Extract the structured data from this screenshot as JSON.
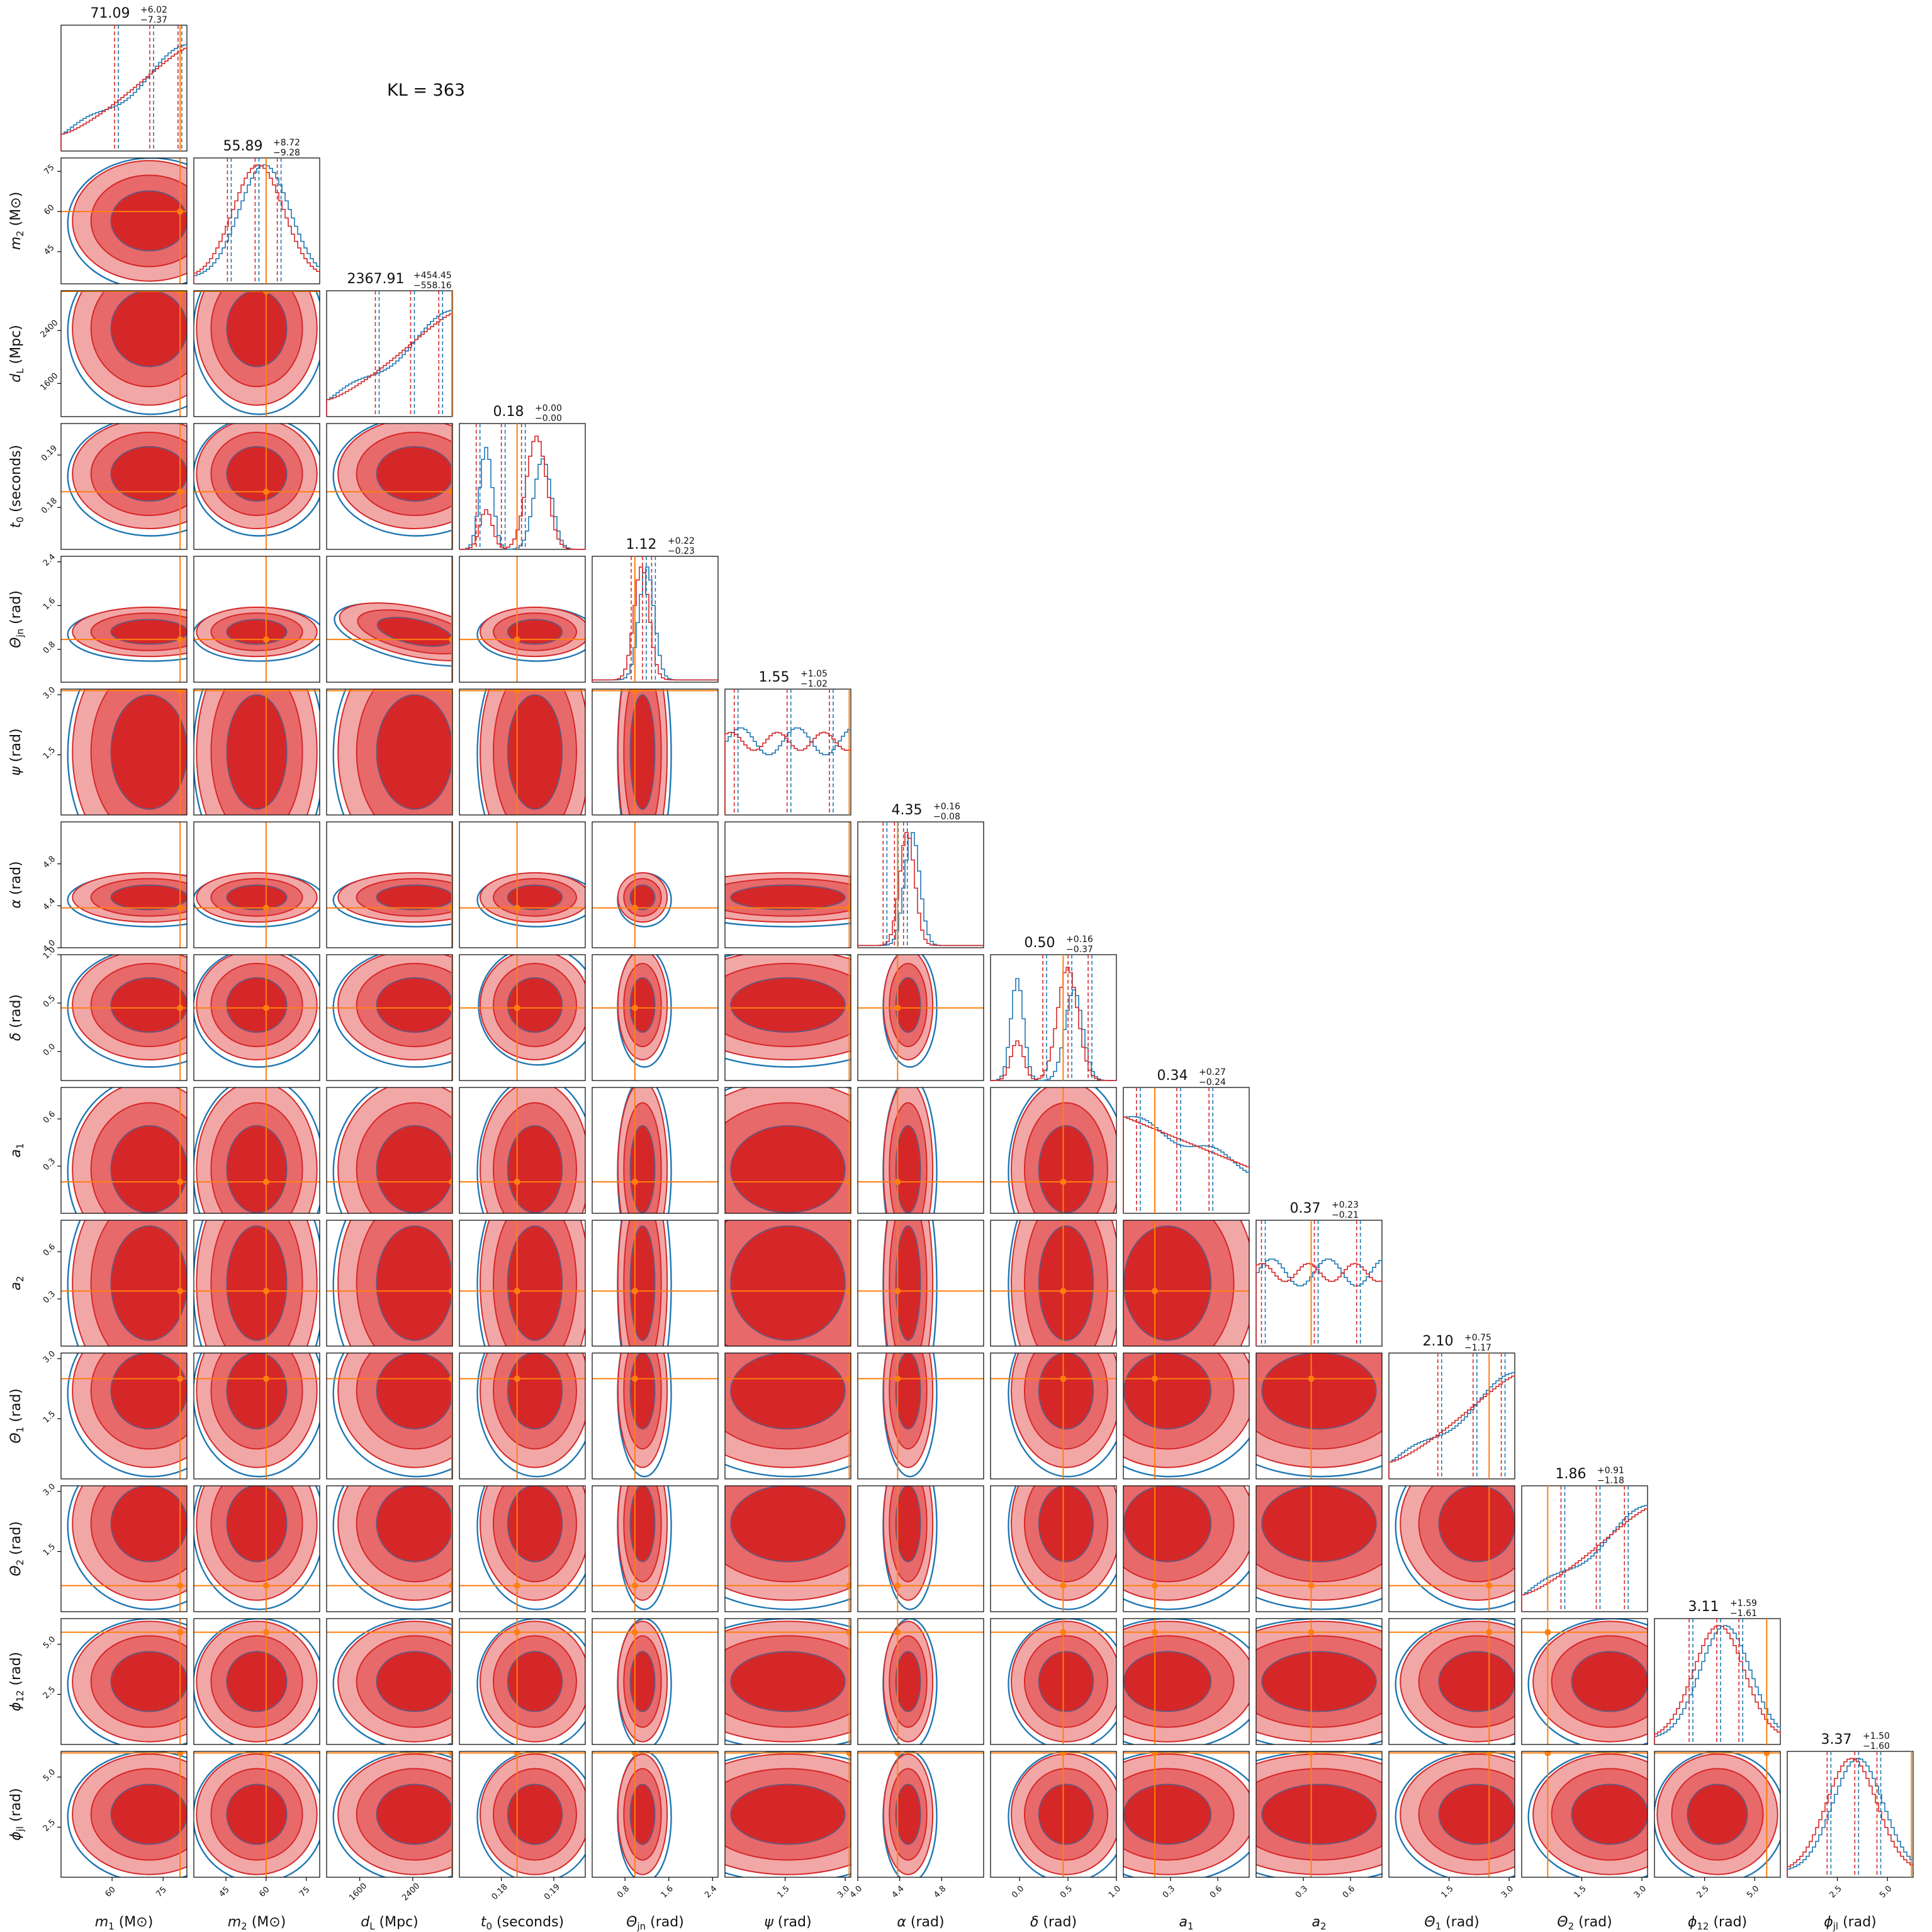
{
  "annotation": {
    "kl_text": "KL = 363"
  },
  "colors": {
    "posterior_a": "#d62728",
    "posterior_b": "#1f77b4",
    "truth": "#ff7f0e"
  },
  "chart_data": {
    "type": "corner",
    "params": [
      {
        "name": "m1",
        "label_main": "m",
        "label_sub": "1",
        "label_unit": "(M⊙)",
        "range": [
          45,
          82
        ],
        "ticks": [
          60,
          75
        ],
        "tick_labels": [
          "60",
          "75"
        ],
        "truth": 80,
        "median": 71.09,
        "plus": "+6.02",
        "minus": "−7.37",
        "median_text": "71.09",
        "shape": "rise"
      },
      {
        "name": "m2",
        "label_main": "m",
        "label_sub": "2",
        "label_unit": "(M⊙)",
        "range": [
          33,
          80
        ],
        "ticks": [
          45,
          60,
          75
        ],
        "tick_labels": [
          "45",
          "60",
          "75"
        ],
        "truth": 60,
        "median": 55.89,
        "plus": "+8.72",
        "minus": "−9.28",
        "median_text": "55.89",
        "shape": "peak"
      },
      {
        "name": "dL",
        "label_main": "d",
        "label_sub": "L",
        "label_unit": "(Mpc)",
        "range": [
          1100,
          3000
        ],
        "ticks": [
          1600,
          2400
        ],
        "tick_labels": [
          "1600",
          "2400"
        ],
        "truth": 2990,
        "median": 2367.91,
        "plus": "+454.45",
        "minus": "−558.16",
        "median_text": "2367.91",
        "shape": "rise"
      },
      {
        "name": "t0",
        "label_main": "t",
        "label_sub": "0",
        "label_unit": "(seconds)",
        "range": [
          0.172,
          0.196
        ],
        "ticks": [
          0.18,
          0.19
        ],
        "tick_labels": [
          "0.18",
          "0.19"
        ],
        "truth": 0.183,
        "median": 0.18,
        "plus": "+0.00",
        "minus": "−0.00",
        "median_text": "0.18",
        "shape": "bimodal"
      },
      {
        "name": "theta_jn",
        "label_main": "Θ",
        "label_sub": "jn",
        "label_unit": "(rad)",
        "range": [
          0.2,
          2.5
        ],
        "ticks": [
          0.8,
          1.6,
          2.4
        ],
        "tick_labels": [
          "0.8",
          "1.6",
          "2.4"
        ],
        "truth": 0.98,
        "median": 1.12,
        "plus": "+0.22",
        "minus": "−0.23",
        "median_text": "1.12",
        "shape": "narrow"
      },
      {
        "name": "psi",
        "label_main": "ψ",
        "label_sub": "",
        "label_unit": "(rad)",
        "range": [
          0.0,
          3.14
        ],
        "ticks": [
          1.5,
          3.0
        ],
        "tick_labels": [
          "1.5",
          "3.0"
        ],
        "truth": 3.1,
        "median": 1.55,
        "plus": "+1.05",
        "minus": "−1.02",
        "median_text": "1.55",
        "shape": "flat"
      },
      {
        "name": "alpha",
        "label_main": "α",
        "label_sub": "",
        "label_unit": "(rad)",
        "range": [
          4.0,
          5.2
        ],
        "ticks": [
          4.0,
          4.4,
          4.8
        ],
        "tick_labels": [
          "4.0",
          "4.4",
          "4.8"
        ],
        "truth": 4.38,
        "median": 4.35,
        "plus": "+0.16",
        "minus": "−0.08",
        "median_text": "4.35",
        "shape": "narrow"
      },
      {
        "name": "delta",
        "label_main": "δ",
        "label_sub": "",
        "label_unit": "(rad)",
        "range": [
          -0.3,
          1.0
        ],
        "ticks": [
          0.0,
          0.5,
          1.0
        ],
        "tick_labels": [
          "0.0",
          "0.5",
          "1.0"
        ],
        "truth": 0.45,
        "median": 0.5,
        "plus": "+0.16",
        "minus": "−0.37",
        "median_text": "0.50",
        "shape": "bimodal"
      },
      {
        "name": "a1",
        "label_main": "a",
        "label_sub": "1",
        "label_unit": "",
        "range": [
          0.0,
          0.8
        ],
        "ticks": [
          0.3,
          0.6
        ],
        "tick_labels": [
          "0.3",
          "0.6"
        ],
        "truth": 0.2,
        "median": 0.34,
        "plus": "+0.27",
        "minus": "−0.24",
        "median_text": "0.34",
        "shape": "fall"
      },
      {
        "name": "a2",
        "label_main": "a",
        "label_sub": "2",
        "label_unit": "",
        "range": [
          0.0,
          0.8
        ],
        "ticks": [
          0.3,
          0.6
        ],
        "tick_labels": [
          "0.3",
          "0.6"
        ],
        "truth": 0.35,
        "median": 0.37,
        "plus": "+0.23",
        "minus": "−0.21",
        "median_text": "0.37",
        "shape": "flat"
      },
      {
        "name": "theta1",
        "label_main": "Θ",
        "label_sub": "1",
        "label_unit": "(rad)",
        "range": [
          0.0,
          3.14
        ],
        "ticks": [
          1.5,
          3.0
        ],
        "tick_labels": [
          "1.5",
          "3.0"
        ],
        "truth": 2.5,
        "median": 2.1,
        "plus": "+0.75",
        "minus": "−1.17",
        "median_text": "2.10",
        "shape": "rise"
      },
      {
        "name": "theta2",
        "label_main": "Θ",
        "label_sub": "2",
        "label_unit": "(rad)",
        "range": [
          0.0,
          3.14
        ],
        "ticks": [
          1.5,
          3.0
        ],
        "tick_labels": [
          "1.5",
          "3.0"
        ],
        "truth": 0.65,
        "median": 1.86,
        "plus": "+0.91",
        "minus": "−1.18",
        "median_text": "1.86",
        "shape": "rise"
      },
      {
        "name": "phi12",
        "label_main": "ϕ",
        "label_sub": "12",
        "label_unit": "(rad)",
        "range": [
          0.0,
          6.28
        ],
        "ticks": [
          2.5,
          5.0
        ],
        "tick_labels": [
          "2.5",
          "5.0"
        ],
        "truth": 5.6,
        "median": 3.11,
        "plus": "+1.59",
        "minus": "−1.61",
        "median_text": "3.11",
        "shape": "peak"
      },
      {
        "name": "phi_jl",
        "label_main": "ϕ",
        "label_sub": "jl",
        "label_unit": "(rad)",
        "range": [
          0.0,
          6.28
        ],
        "ticks": [
          2.5,
          5.0
        ],
        "tick_labels": [
          "2.5",
          "5.0"
        ],
        "truth": 6.2,
        "median": 3.37,
        "plus": "+1.50",
        "minus": "−1.60",
        "median_text": "3.37",
        "shape": "peak"
      }
    ]
  }
}
